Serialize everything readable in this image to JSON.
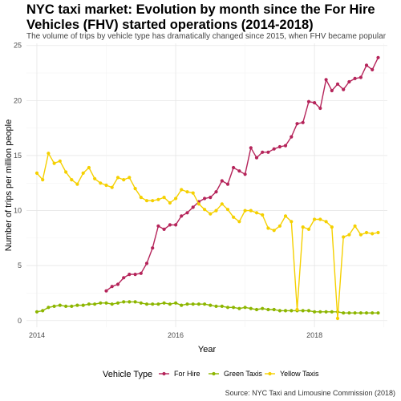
{
  "title": "NYC taxi market: Evolution by month since the For Hire Vehicles (FHV) started operations (2014-2018)",
  "subtitle": "The volume of trips by vehicle type has dramatically changed since 2015, when FHV became popular",
  "caption": "Source: NYC Taxi and Limousine Commission (2018)",
  "chart_data": {
    "type": "line",
    "title": "NYC taxi market: Evolution by month since the For Hire Vehicles (FHV) started operations (2014-2018)",
    "xlabel": "Year",
    "ylabel": "Number of trips per million people",
    "x_ticks": [
      2014,
      2016,
      2018
    ],
    "y_ticks": [
      0,
      5,
      10,
      15,
      20,
      25
    ],
    "xlim": [
      2013.85,
      2019.05
    ],
    "ylim": [
      -0.6,
      25.2
    ],
    "grid": true,
    "legend_title": "Vehicle Type",
    "legend_position": "bottom",
    "series": [
      {
        "name": "For Hire",
        "color": "#B5245A",
        "x": [
          2015.0,
          2015.083,
          2015.167,
          2015.25,
          2015.333,
          2015.417,
          2015.5,
          2015.583,
          2015.667,
          2015.75,
          2015.833,
          2015.917,
          2016.0,
          2016.083,
          2016.167,
          2016.25,
          2016.333,
          2016.417,
          2016.5,
          2016.583,
          2016.667,
          2016.75,
          2016.833,
          2016.917,
          2017.0,
          2017.083,
          2017.167,
          2017.25,
          2017.333,
          2017.417,
          2017.5,
          2017.583,
          2017.667,
          2017.75,
          2017.833,
          2017.917,
          2018.0,
          2018.083,
          2018.167,
          2018.25,
          2018.333,
          2018.417,
          2018.5,
          2018.583,
          2018.667,
          2018.75,
          2018.833,
          2018.917
        ],
        "y": [
          2.7,
          3.1,
          3.3,
          3.9,
          4.2,
          4.2,
          4.3,
          5.2,
          6.6,
          8.6,
          8.3,
          8.7,
          8.7,
          9.5,
          9.8,
          10.3,
          10.8,
          11.1,
          11.2,
          11.7,
          12.7,
          12.4,
          13.9,
          13.6,
          13.3,
          15.7,
          14.8,
          15.3,
          15.3,
          15.6,
          15.8,
          15.9,
          16.7,
          17.9,
          18.0,
          19.9,
          19.8,
          19.3,
          21.9,
          20.9,
          21.5,
          21.0,
          21.7,
          22.0,
          22.1,
          23.2,
          22.8,
          23.9
        ]
      },
      {
        "name": "Green Taxis",
        "color": "#8DB600",
        "x": [
          2014.0,
          2014.083,
          2014.167,
          2014.25,
          2014.333,
          2014.417,
          2014.5,
          2014.583,
          2014.667,
          2014.75,
          2014.833,
          2014.917,
          2015.0,
          2015.083,
          2015.167,
          2015.25,
          2015.333,
          2015.417,
          2015.5,
          2015.583,
          2015.667,
          2015.75,
          2015.833,
          2015.917,
          2016.0,
          2016.083,
          2016.167,
          2016.25,
          2016.333,
          2016.417,
          2016.5,
          2016.583,
          2016.667,
          2016.75,
          2016.833,
          2016.917,
          2017.0,
          2017.083,
          2017.167,
          2017.25,
          2017.333,
          2017.417,
          2017.5,
          2017.583,
          2017.667,
          2017.75,
          2017.833,
          2017.917,
          2018.0,
          2018.083,
          2018.167,
          2018.25,
          2018.333,
          2018.417,
          2018.5,
          2018.583,
          2018.667,
          2018.75,
          2018.833,
          2018.917
        ],
        "y": [
          0.8,
          0.9,
          1.2,
          1.3,
          1.4,
          1.3,
          1.3,
          1.4,
          1.4,
          1.5,
          1.5,
          1.6,
          1.6,
          1.5,
          1.6,
          1.7,
          1.7,
          1.7,
          1.6,
          1.5,
          1.5,
          1.5,
          1.6,
          1.5,
          1.6,
          1.4,
          1.5,
          1.5,
          1.5,
          1.5,
          1.4,
          1.3,
          1.3,
          1.2,
          1.2,
          1.1,
          1.2,
          1.1,
          1.0,
          1.1,
          1.0,
          1.0,
          0.9,
          0.9,
          0.9,
          0.9,
          0.9,
          0.9,
          0.8,
          0.8,
          0.8,
          0.8,
          0.8,
          0.7,
          0.7,
          0.7,
          0.7,
          0.7,
          0.7,
          0.7
        ]
      },
      {
        "name": "Yellow Taxis",
        "color": "#F5D000",
        "x": [
          2014.0,
          2014.083,
          2014.167,
          2014.25,
          2014.333,
          2014.417,
          2014.5,
          2014.583,
          2014.667,
          2014.75,
          2014.833,
          2014.917,
          2015.0,
          2015.083,
          2015.167,
          2015.25,
          2015.333,
          2015.417,
          2015.5,
          2015.583,
          2015.667,
          2015.75,
          2015.833,
          2015.917,
          2016.0,
          2016.083,
          2016.167,
          2016.25,
          2016.333,
          2016.417,
          2016.5,
          2016.583,
          2016.667,
          2016.75,
          2016.833,
          2016.917,
          2017.0,
          2017.083,
          2017.167,
          2017.25,
          2017.333,
          2017.417,
          2017.5,
          2017.583,
          2017.667,
          2017.75,
          2017.833,
          2017.917,
          2018.0,
          2018.083,
          2018.167,
          2018.25,
          2018.333,
          2018.417,
          2018.5,
          2018.583,
          2018.667,
          2018.75,
          2018.833,
          2018.917
        ],
        "y": [
          13.4,
          12.8,
          15.2,
          14.3,
          14.5,
          13.5,
          12.8,
          12.4,
          13.4,
          13.9,
          12.9,
          12.5,
          12.3,
          12.1,
          13.0,
          12.8,
          13.0,
          12.0,
          11.2,
          10.9,
          10.9,
          11.0,
          11.2,
          10.7,
          11.1,
          11.9,
          11.7,
          11.6,
          10.6,
          10.1,
          9.7,
          10.0,
          10.6,
          10.1,
          9.4,
          9.0,
          10.0,
          10.0,
          9.8,
          9.6,
          8.4,
          8.2,
          8.6,
          9.5,
          9.0,
          1.0,
          8.5,
          8.3,
          9.2,
          9.2,
          9.0,
          8.5,
          0.2,
          7.6,
          7.8,
          8.6,
          7.8,
          8.0,
          7.9,
          8.0
        ]
      }
    ]
  }
}
